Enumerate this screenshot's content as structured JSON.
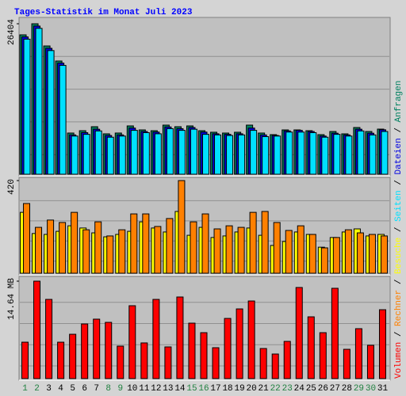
{
  "chart_data": {
    "type": "bar",
    "title": "Tages-Statistik im Monat Juli 2023",
    "categories": [
      "1",
      "2",
      "3",
      "4",
      "5",
      "6",
      "7",
      "8",
      "9",
      "10",
      "11",
      "12",
      "13",
      "14",
      "15",
      "16",
      "17",
      "18",
      "19",
      "20",
      "21",
      "22",
      "23",
      "24",
      "25",
      "26",
      "27",
      "28",
      "29",
      "30",
      "31"
    ],
    "category_colors": [
      "#208040",
      "#208040",
      "#000000",
      "#000000",
      "#000000",
      "#000000",
      "#000000",
      "#208040",
      "#208040",
      "#000000",
      "#000000",
      "#000000",
      "#000000",
      "#000000",
      "#208040",
      "#208040",
      "#000000",
      "#000000",
      "#000000",
      "#000000",
      "#000000",
      "#208040",
      "#208040",
      "#000000",
      "#000000",
      "#000000",
      "#000000",
      "#000000",
      "#208040",
      "#208040",
      "#000000"
    ],
    "panels": [
      {
        "ylim": [
          0,
          26404
        ],
        "yticks": [
          26404
        ],
        "series": [
          {
            "name": "Anfragen",
            "color": "#008060",
            "values": [
              24460,
              26404,
              22510,
              19870,
              7230,
              7640,
              8340,
              7090,
              7230,
              8480,
              7780,
              7640,
              8620,
              8340,
              8480,
              7640,
              7370,
              7230,
              7370,
              8620,
              7230,
              6950,
              7780,
              7780,
              7640,
              6950,
              7500,
              7090,
              8200,
              7500,
              7920
            ]
          },
          {
            "name": "Dateien",
            "color": "#0000e0",
            "values": [
              24100,
              26000,
              22100,
              19500,
              6900,
              7300,
              7900,
              6800,
              6900,
              8100,
              7500,
              7400,
              8300,
              8000,
              8200,
              7400,
              7100,
              7000,
              7100,
              8100,
              6900,
              6800,
              7600,
              7700,
              7500,
              6700,
              7200,
              6900,
              7900,
              7200,
              7800
            ]
          },
          {
            "name": "Seiten",
            "color": "#00e0ff",
            "values": [
              23700,
              25600,
              21700,
              19100,
              6700,
              7000,
              7600,
              6500,
              6700,
              7700,
              7300,
              7100,
              8000,
              7700,
              7900,
              7000,
              6900,
              6800,
              6900,
              7700,
              6600,
              6700,
              7400,
              7400,
              7300,
              6500,
              7000,
              6700,
              7600,
              6900,
              7500
            ]
          }
        ]
      },
      {
        "ylim": [
          0,
          420
        ],
        "yticks": [
          420
        ],
        "series": [
          {
            "name": "Besuche",
            "color": "#ffff00",
            "values": [
              276,
              180,
              176,
              190,
              215,
              205,
              183,
              165,
              176,
              190,
              233,
              205,
              187,
              280,
              172,
              208,
              162,
              169,
              187,
              205,
              172,
              126,
              144,
              187,
              176,
              118,
              162,
              187,
              201,
              169,
              176
            ]
          },
          {
            "name": "Rechner",
            "color": "#ff8000",
            "values": [
              316,
              208,
              241,
              230,
              276,
              197,
              233,
              169,
              197,
              269,
              269,
              212,
              248,
              420,
              233,
              269,
              201,
              215,
              208,
              276,
              280,
              230,
              194,
              215,
              176,
              115,
              162,
              197,
              183,
              176,
              169
            ]
          }
        ]
      },
      {
        "ylim": [
          0,
          14.64
        ],
        "yticks": [
          {
            "value": 14.64,
            "label": "14.64 MB"
          }
        ],
        "series": [
          {
            "name": "Volumen",
            "color": "#ff0000",
            "values": [
              5.47,
              14.64,
              11.9,
              5.47,
              6.66,
              8.21,
              8.93,
              8.45,
              4.88,
              10.95,
              5.36,
              11.9,
              4.76,
              12.26,
              8.33,
              6.9,
              4.64,
              9.04,
              10.47,
              11.66,
              4.52,
              3.69,
              5.59,
              13.69,
              9.28,
              6.9,
              13.57,
              4.4,
              7.5,
              5.0,
              10.35
            ]
          }
        ]
      }
    ]
  }
}
